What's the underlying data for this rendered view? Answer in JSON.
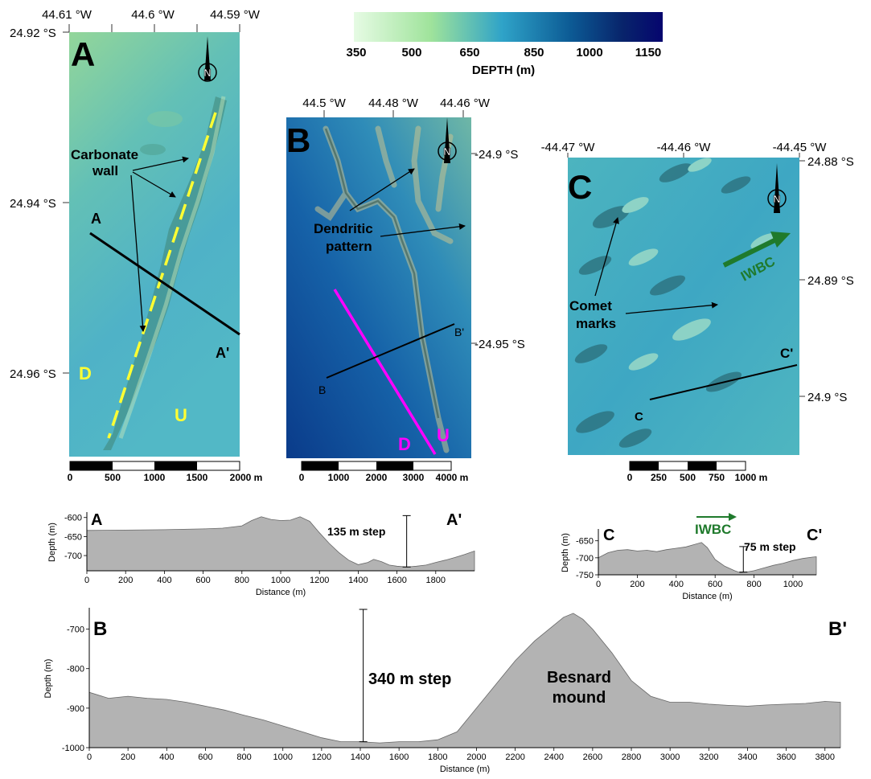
{
  "colorbar": {
    "ticks": [
      "350",
      "500",
      "650",
      "850",
      "1000",
      "1150"
    ],
    "label": "DEPTH (m)",
    "colors": [
      "#e6fbe4",
      "#9fe39b",
      "#2fa3c8",
      "#0c5b95",
      "#08246b",
      "#05056e"
    ]
  },
  "panels": {
    "A": {
      "letter": "A",
      "lon_ticks": [
        "44.61 °W",
        "44.6 °W",
        "44.59 °W"
      ],
      "lat_ticks": [
        "24.92 °S",
        "24.94 °S",
        "24.96 °S"
      ],
      "annotations": {
        "wall": "Carbonate\nwall",
        "D": "D",
        "U": "U",
        "start": "A",
        "end": "A'"
      },
      "scalebar": [
        "0",
        "500",
        "1000",
        "1500",
        "2000 m"
      ],
      "north_icon": "north-arrow-icon"
    },
    "B": {
      "letter": "B",
      "lon_ticks": [
        "44.5 °W",
        "44.48 °W",
        "44.46 °W"
      ],
      "lat_ticks": [
        "-24.9 °S",
        "-24.95 °S"
      ],
      "annotations": {
        "dendritic": "Dendritic\npattern",
        "D": "D",
        "U": "U",
        "start": "B",
        "end": "B'"
      },
      "scalebar": [
        "0",
        "1000",
        "2000",
        "3000",
        "4000 m"
      ],
      "north_icon": "north-arrow-icon"
    },
    "C": {
      "letter": "C",
      "lon_ticks": [
        "-44.47 °W",
        "-44.46 °W",
        "-44.45 °W"
      ],
      "lat_ticks": [
        "24.88 °S",
        "24.89 °S",
        "24.9 °S"
      ],
      "annotations": {
        "comet": "Comet\nmarks",
        "current": "IWBC",
        "start": "C",
        "end": "C'"
      },
      "scalebar": [
        "0",
        "250",
        "500",
        "750",
        "1000 m"
      ],
      "north_icon": "north-arrow-icon"
    }
  },
  "profiles": {
    "A": {
      "start": "A",
      "end": "A'",
      "ylabel": "Depth (m)",
      "xlabel": "Distance (m)",
      "yticks": [
        "-600",
        "-650",
        "-700"
      ],
      "xticks": [
        "0",
        "200",
        "400",
        "600",
        "800",
        "1000",
        "1200",
        "1400",
        "1600",
        "1800"
      ],
      "step_label": "135 m step",
      "chart_data": {
        "type": "area",
        "xlim": [
          0,
          2000
        ],
        "ylim": [
          -740,
          -590
        ],
        "x": [
          0,
          200,
          400,
          600,
          700,
          800,
          850,
          900,
          950,
          1000,
          1050,
          1100,
          1150,
          1200,
          1250,
          1300,
          1350,
          1400,
          1450,
          1480,
          1520,
          1560,
          1600,
          1650,
          1700,
          1750,
          1800,
          1850,
          1900,
          1950,
          2000
        ],
        "values": [
          -634,
          -633,
          -632,
          -630,
          -628,
          -622,
          -608,
          -598,
          -605,
          -608,
          -607,
          -598,
          -610,
          -640,
          -668,
          -692,
          -712,
          -724,
          -718,
          -710,
          -716,
          -725,
          -728,
          -730,
          -728,
          -725,
          -718,
          -712,
          -705,
          -697,
          -688
        ]
      }
    },
    "C": {
      "start": "C",
      "end": "C'",
      "ylabel": "Depth (m)",
      "xlabel": "Distance (m)",
      "yticks": [
        "-650",
        "-700",
        "-750"
      ],
      "xticks": [
        "0",
        "200",
        "400",
        "600",
        "800",
        "1000"
      ],
      "step_label": "75 m step",
      "current_label": "IWBC",
      "chart_data": {
        "type": "area",
        "xlim": [
          0,
          1120
        ],
        "ylim": [
          -750,
          -620
        ],
        "x": [
          0,
          50,
          100,
          150,
          200,
          250,
          300,
          350,
          400,
          450,
          500,
          530,
          560,
          600,
          650,
          700,
          730,
          760,
          800,
          850,
          900,
          950,
          1000,
          1050,
          1100,
          1120
        ],
        "values": [
          -700,
          -685,
          -678,
          -676,
          -680,
          -678,
          -682,
          -676,
          -672,
          -668,
          -660,
          -655,
          -670,
          -705,
          -725,
          -738,
          -744,
          -742,
          -738,
          -730,
          -722,
          -716,
          -708,
          -702,
          -698,
          -697
        ]
      }
    },
    "B": {
      "start": "B",
      "end": "B'",
      "ylabel": "Depth (m)",
      "xlabel": "Distance (m)",
      "yticks": [
        "-700",
        "-800",
        "-900",
        "-1000"
      ],
      "xticks": [
        "0",
        "200",
        "400",
        "600",
        "800",
        "1000",
        "1200",
        "1400",
        "1600",
        "1800",
        "2000",
        "2200",
        "2400",
        "2600",
        "2800",
        "3000",
        "3200",
        "3400",
        "3600",
        "3800"
      ],
      "step_label": "340 m step",
      "mound_label": "Besnard\nmound",
      "chart_data": {
        "type": "area",
        "xlim": [
          0,
          3880
        ],
        "ylim": [
          -1000,
          -650
        ],
        "x": [
          0,
          100,
          200,
          300,
          400,
          500,
          600,
          700,
          800,
          900,
          1000,
          1100,
          1200,
          1300,
          1400,
          1500,
          1600,
          1700,
          1800,
          1900,
          2000,
          2100,
          2200,
          2300,
          2400,
          2450,
          2500,
          2550,
          2600,
          2700,
          2800,
          2900,
          3000,
          3100,
          3200,
          3300,
          3400,
          3500,
          3600,
          3700,
          3800,
          3880
        ],
        "values": [
          -860,
          -875,
          -870,
          -875,
          -878,
          -885,
          -895,
          -905,
          -918,
          -930,
          -945,
          -960,
          -975,
          -985,
          -985,
          -988,
          -985,
          -985,
          -980,
          -960,
          -900,
          -840,
          -780,
          -730,
          -690,
          -670,
          -660,
          -675,
          -700,
          -760,
          -830,
          -870,
          -885,
          -885,
          -890,
          -893,
          -895,
          -892,
          -890,
          -888,
          -883,
          -885
        ]
      }
    }
  }
}
